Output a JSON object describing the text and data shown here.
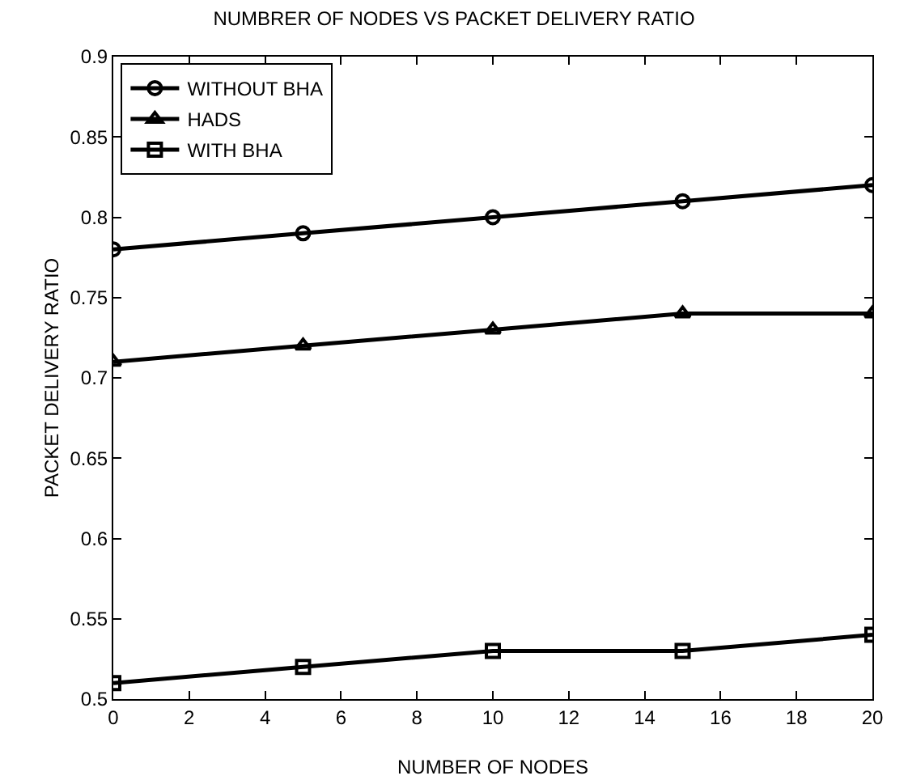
{
  "chart_data": {
    "type": "line",
    "title": "NUMBRER OF NODES VS PACKET DELIVERY RATIO",
    "xlabel": "NUMBER OF NODES",
    "ylabel": "PACKET DELIVERY RATIO",
    "x": [
      0,
      5,
      10,
      15,
      20
    ],
    "series": [
      {
        "name": "WITHOUT BHA",
        "color": "#000000",
        "marker": "circle",
        "values": [
          0.78,
          0.79,
          0.8,
          0.81,
          0.82
        ]
      },
      {
        "name": "HADS",
        "color": "#000000",
        "marker": "triangle",
        "values": [
          0.71,
          0.72,
          0.73,
          0.74,
          0.74
        ]
      },
      {
        "name": "WITH BHA",
        "color": "#000000",
        "marker": "square",
        "values": [
          0.51,
          0.52,
          0.53,
          0.53,
          0.54
        ]
      }
    ],
    "xlim": [
      0,
      20
    ],
    "xticks": [
      0,
      2,
      4,
      6,
      8,
      10,
      12,
      14,
      16,
      18,
      20
    ],
    "ylim": [
      0.5,
      0.9
    ],
    "yticks": [
      0.5,
      0.55,
      0.6,
      0.65,
      0.7,
      0.75,
      0.8,
      0.85,
      0.9
    ],
    "grid": false,
    "legend": "top left",
    "line_style": "solid"
  }
}
